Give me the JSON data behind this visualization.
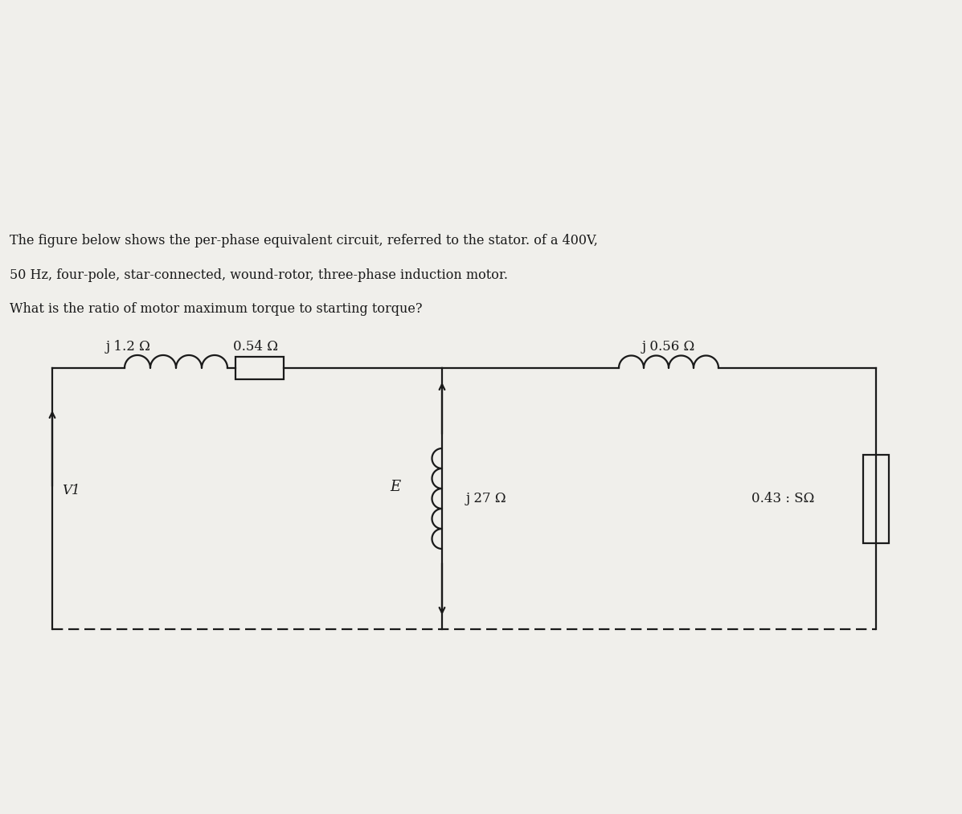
{
  "title_line1": "The figure below shows the per-phase equivalent circuit, referred to the stator. of a 400V,",
  "title_line2": "50 Hz, four-pole, star-connected, wound-rotor, three-phase induction motor.",
  "title_line3": "What is the ratio of motor maximum torque to starting torque?",
  "inductor_label_1": "j 1.2 Ω",
  "resistor_label_1": "0.54 Ω",
  "inductor_label_2": "j 0.56 Ω",
  "voltage_label": "V1",
  "emf_label": "E",
  "magnetizing_label": "j 27 Ω",
  "rotor_resistor_label": "0.43 : SΩ",
  "bg_color": "#f0efeb",
  "line_color": "#1a1a1a",
  "text_color": "#1a1a1a"
}
